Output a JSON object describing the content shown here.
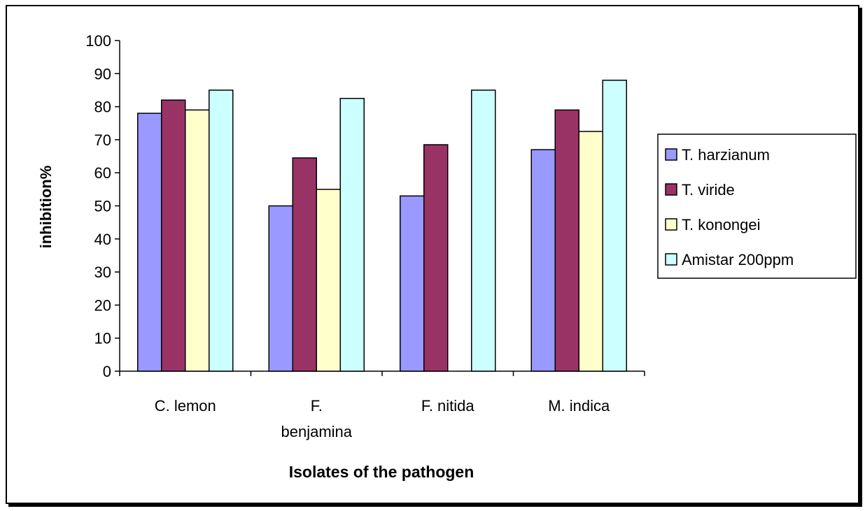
{
  "chart_data": {
    "type": "bar",
    "title": "",
    "xlabel": "Isolates of the pathogen",
    "ylabel": "inhibition%",
    "ylim": [
      0,
      100
    ],
    "yticks": [
      0,
      10,
      20,
      30,
      40,
      50,
      60,
      70,
      80,
      90,
      100
    ],
    "grid": false,
    "legend_position": "right",
    "categories": [
      [
        "C. lemon"
      ],
      [
        "F.",
        "benjamina"
      ],
      [
        "F. nitida"
      ],
      [
        "M. indica"
      ]
    ],
    "series": [
      {
        "name": "T. harzianum",
        "color": "#9999ff",
        "values": [
          78,
          50,
          53,
          67
        ]
      },
      {
        "name": "T. viride",
        "color": "#993366",
        "values": [
          82,
          64.5,
          68.5,
          79
        ]
      },
      {
        "name": "T. konongei",
        "color": "#ffffcc",
        "values": [
          79,
          55,
          0,
          72.5
        ]
      },
      {
        "name": "Amistar 200ppm",
        "color": "#ccffff",
        "values": [
          85,
          82.5,
          85,
          88
        ]
      }
    ]
  }
}
